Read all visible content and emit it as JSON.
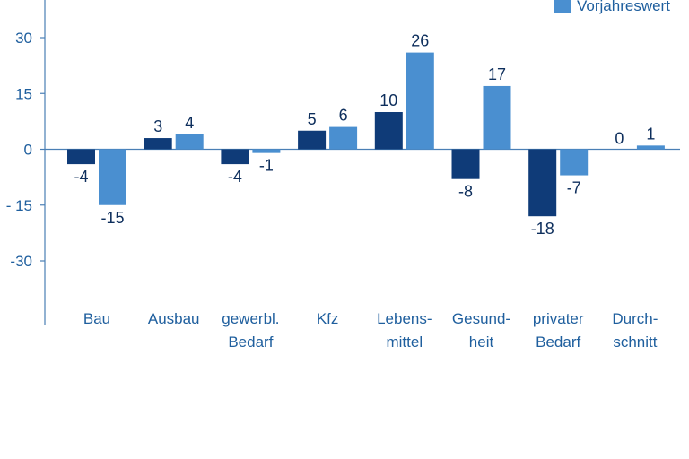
{
  "chart_data": {
    "type": "bar",
    "categories": [
      [
        "Bau"
      ],
      [
        "Ausbau"
      ],
      [
        "gewerbl.",
        "Bedarf"
      ],
      [
        "Kfz"
      ],
      [
        "Lebens-",
        "mittel"
      ],
      [
        "Gesund-",
        "heit"
      ],
      [
        "privater",
        "Bedarf"
      ],
      [
        "Durch-",
        "schnitt"
      ]
    ],
    "series": [
      {
        "values": [
          -4,
          3,
          -4,
          5,
          10,
          -8,
          -18,
          0
        ],
        "color": "#0f3b78"
      },
      {
        "name": "Vorjahreswert",
        "values": [
          -15,
          4,
          -1,
          6,
          26,
          17,
          -7,
          1
        ],
        "color": "#4a8fd0"
      }
    ],
    "data_labels": {
      "series0": [
        "-4",
        "3",
        "-4",
        "5",
        "10",
        "-8",
        "-18",
        "0"
      ],
      "series1": [
        "-15",
        "4",
        "-1",
        "6",
        "26",
        "17",
        "-7",
        "1"
      ]
    },
    "yticks": [
      30,
      15,
      0,
      -15,
      -30
    ],
    "ytick_labels": [
      "30",
      "15",
      "0",
      "- 15",
      "-30"
    ],
    "ylim": [
      -47,
      40
    ],
    "legend": "top-right",
    "colors": {
      "axis": "#4a7fb5",
      "text": "#1f5f9e",
      "label": "#0d2e5c"
    }
  }
}
